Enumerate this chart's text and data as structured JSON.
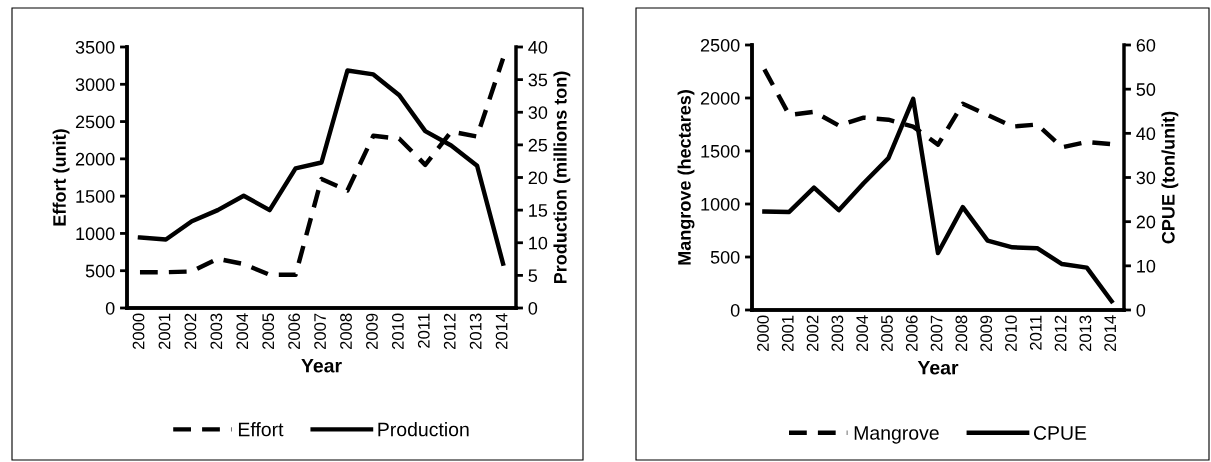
{
  "chart_data": [
    {
      "type": "line",
      "xlabel": "Year",
      "ylabel": "Effort (unit)",
      "y2label": "Production (millions ton)",
      "categories": [
        "2000",
        "2001",
        "2002",
        "2003",
        "2004",
        "2005",
        "2006",
        "2007",
        "2008",
        "2009",
        "2010",
        "2011",
        "2012",
        "2013",
        "2014"
      ],
      "series": [
        {
          "name": "Effort",
          "color": "#000000",
          "line_style": "dashed",
          "values": [
            480,
            480,
            490,
            660,
            590,
            445,
            445,
            1730,
            1575,
            2310,
            2270,
            1920,
            2365,
            2300,
            3345
          ]
        },
        {
          "name": "Production",
          "color": "#000000",
          "line_style": "solid",
          "axis": "y2",
          "values": [
            10.8,
            10.5,
            13.3,
            15.0,
            17.2,
            15.0,
            21.4,
            22.3,
            36.4,
            35.8,
            32.6,
            27.1,
            24.9,
            21.8,
            6.8
          ]
        }
      ],
      "ylim": [
        0,
        3500
      ],
      "yticks": [
        0,
        500,
        1000,
        1500,
        2000,
        2500,
        3000,
        3500
      ],
      "y2lim": [
        0,
        40
      ],
      "y2ticks": [
        0,
        5,
        10,
        15,
        20,
        25,
        30,
        35,
        40
      ],
      "grid": false,
      "legend": "bottom",
      "marker": "none"
    },
    {
      "type": "line",
      "xlabel": "Year",
      "ylabel": "Mangrove (hectares)",
      "y2label": "CPUE (ton/unit)",
      "categories": [
        "2000",
        "2001",
        "2002",
        "2003",
        "2004",
        "2005",
        "2006",
        "2007",
        "2008",
        "2009",
        "2010",
        "2011",
        "2012",
        "2013",
        "2014"
      ],
      "series": [
        {
          "name": "Mangrove",
          "color": "#000000",
          "line_style": "dashed",
          "values": [
            2270,
            1840,
            1870,
            1740,
            1815,
            1795,
            1730,
            1560,
            1945,
            1840,
            1730,
            1750,
            1535,
            1585,
            1565
          ]
        },
        {
          "name": "CPUE",
          "color": "#000000",
          "line_style": "solid",
          "axis": "y2",
          "values": [
            22.3,
            22.2,
            27.7,
            22.6,
            28.7,
            34.4,
            47.8,
            12.9,
            23.3,
            15.7,
            14.2,
            14.0,
            10.4,
            9.6,
            2.0
          ]
        }
      ],
      "ylim": [
        0,
        2500
      ],
      "yticks": [
        0,
        500,
        1000,
        1500,
        2000,
        2500
      ],
      "y2lim": [
        0,
        60
      ],
      "y2ticks": [
        0,
        10,
        20,
        30,
        40,
        50,
        60
      ],
      "grid": false,
      "legend": "bottom",
      "marker": "none"
    }
  ]
}
